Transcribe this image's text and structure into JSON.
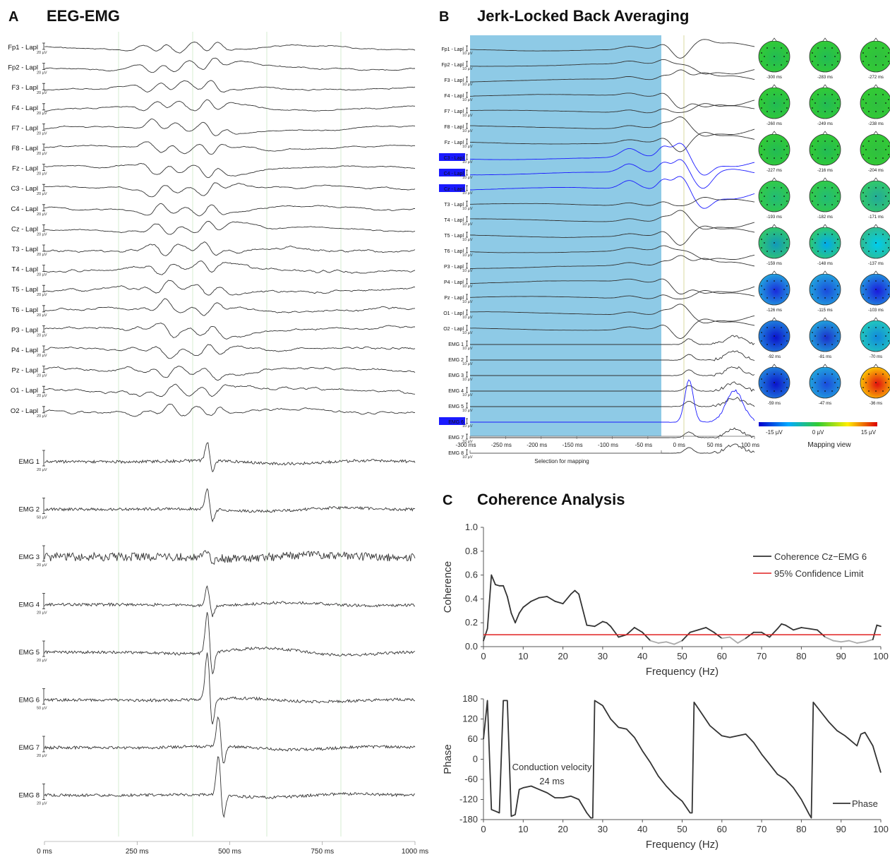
{
  "panel_a": {
    "letter": "A",
    "title": "EEG-EMG",
    "eeg_channels": [
      "Fp1 - Lapl",
      "Fp2 - Lapl",
      "F3 - Lapl",
      "F4 - Lapl",
      "F7 - Lapl",
      "F8 - Lapl",
      "Fz - Lapl",
      "C3 - Lapl",
      "C4 - Lapl",
      "Cz - Lapl",
      "T3 - Lapl",
      "T4 - Lapl",
      "T5 - Lapl",
      "T6 - Lapl",
      "P3 - Lapl",
      "P4 - Lapl",
      "Pz - Lapl",
      "O1 - Lapl",
      "O2 - Lapl"
    ],
    "eeg_scale": "20 µV",
    "emg_channels": [
      "EMG 1",
      "EMG 2",
      "EMG 3",
      "EMG 4",
      "EMG 5",
      "EMG 6",
      "EMG 7",
      "EMG 8"
    ],
    "emg_scales": [
      "20 µV",
      "50 µV",
      "20 µV",
      "20 µV",
      "20 µV",
      "50 µV",
      "20 µV",
      "20 µV"
    ],
    "x_ticks": [
      "0 ms",
      "250 ms",
      "500 ms",
      "750 ms",
      "1000 ms"
    ]
  },
  "panel_b": {
    "letter": "B",
    "title": "Jerk-Locked Back Averaging",
    "channels": [
      "Fp1 - Lapl",
      "Fp2 - Lapl",
      "F3 - Lapl",
      "F4 - Lapl",
      "F7 - Lapl",
      "F8 - Lapl",
      "Fz - Lapl",
      "C3 - Lapl",
      "C4 - Lapl",
      "Cz - Lapl",
      "T3 - Lapl",
      "T4 - Lapl",
      "T5 - Lapl",
      "T6 - Lapl",
      "P3 - Lapl",
      "P4 - Lapl",
      "Pz - Lapl",
      "O1 - Lapl",
      "O2 - Lapl",
      "EMG 1",
      "EMG 2",
      "EMG 3",
      "EMG 4",
      "EMG 5",
      "EMG 6",
      "EMG 7",
      "EMG 8"
    ],
    "highlighted_channels": [
      "C3 - Lapl",
      "C4 - Lapl",
      "Cz - Lapl",
      "EMG 6"
    ],
    "scale": "10 µV",
    "x_ticks": [
      "-300 ms",
      "-250 ms",
      "-200 ms",
      "-150 ms",
      "-100 ms",
      "-50 ms",
      "0 ms",
      "50 ms",
      "100 ms"
    ],
    "selection_label": "Selection for mapping",
    "map_times": [
      "-300 ms",
      "-283 ms",
      "-272 ms",
      "-260 ms",
      "-249 ms",
      "-238 ms",
      "-227 ms",
      "-216 ms",
      "-204 ms",
      "-193 ms",
      "-182 ms",
      "-171 ms",
      "-159 ms",
      "-148 ms",
      "-137 ms",
      "-126 ms",
      "-115 ms",
      "-103 ms",
      "-92 ms",
      "-81 ms",
      "-70 ms",
      "-59 ms",
      "-47 ms",
      "-36 ms"
    ],
    "colorbar_labels": [
      "-15 µV",
      "0 µV",
      "15 µV"
    ],
    "mapping_view_label": "Mapping view",
    "colors": {
      "selection": "#8ecae6",
      "highlight": "#1a1aff"
    }
  },
  "panel_c": {
    "letter": "C",
    "title": "Coherence Analysis",
    "colors": {
      "coherence": "#333333",
      "below_limit": "#aaaaaa",
      "limit": "#e02020",
      "phase": "#333333"
    }
  },
  "chart_data": [
    {
      "type": "line",
      "xlabel": "Frequency (Hz)",
      "ylabel": "Coherence",
      "xlim": [
        0,
        100
      ],
      "ylim": [
        0,
        1.0
      ],
      "x_ticks": [
        0,
        10,
        20,
        30,
        40,
        50,
        60,
        70,
        80,
        90,
        100
      ],
      "y_ticks": [
        "0.0",
        "0.2",
        "0.4",
        "0.6",
        "0.8",
        "1.0"
      ],
      "legend_position": "top-right",
      "series": [
        {
          "name": "Coherence Cz−EMG 6",
          "x": [
            0,
            1,
            2,
            3,
            4,
            5,
            6,
            7,
            8,
            9,
            10,
            12,
            14,
            16,
            18,
            20,
            22,
            23,
            24,
            26,
            28,
            30,
            31,
            32,
            34,
            36,
            38,
            40,
            42,
            44,
            46,
            48,
            50,
            52,
            54,
            56,
            58,
            60,
            62,
            64,
            66,
            68,
            70,
            72,
            74,
            75,
            76,
            78,
            80,
            82,
            84,
            86,
            88,
            90,
            92,
            94,
            96,
            98,
            99,
            100
          ],
          "y": [
            0.05,
            0.15,
            0.6,
            0.52,
            0.51,
            0.51,
            0.42,
            0.28,
            0.2,
            0.28,
            0.33,
            0.38,
            0.41,
            0.42,
            0.38,
            0.36,
            0.44,
            0.47,
            0.44,
            0.18,
            0.17,
            0.21,
            0.2,
            0.17,
            0.08,
            0.1,
            0.16,
            0.12,
            0.05,
            0.03,
            0.04,
            0.02,
            0.05,
            0.12,
            0.14,
            0.16,
            0.12,
            0.07,
            0.08,
            0.03,
            0.07,
            0.12,
            0.12,
            0.08,
            0.15,
            0.19,
            0.18,
            0.14,
            0.16,
            0.15,
            0.14,
            0.08,
            0.05,
            0.04,
            0.05,
            0.03,
            0.04,
            0.06,
            0.18,
            0.17
          ]
        },
        {
          "name": "95% Confidence Limit",
          "x": [
            0,
            100
          ],
          "y": [
            0.1,
            0.1
          ]
        }
      ]
    },
    {
      "type": "line",
      "xlabel": "Frequency (Hz)",
      "ylabel": "Phase",
      "xlim": [
        0,
        100
      ],
      "ylim": [
        -180,
        180
      ],
      "x_ticks": [
        0,
        10,
        20,
        30,
        40,
        50,
        60,
        70,
        80,
        90,
        100
      ],
      "y_ticks": [
        -180,
        -120,
        -60,
        0,
        60,
        120,
        180
      ],
      "legend_position": "bottom-right",
      "annotation": [
        "Conduction velocity",
        "24 ms"
      ],
      "series": [
        {
          "name": "Phase",
          "x": [
            0,
            1,
            2,
            3,
            4,
            5,
            5.5,
            6,
            7,
            8,
            9,
            10,
            12,
            14,
            16,
            18,
            20,
            22,
            24,
            26,
            27,
            27.5,
            28,
            30,
            32,
            34,
            36,
            38,
            40,
            42,
            44,
            46,
            48,
            50,
            52,
            52.5,
            53,
            55,
            57,
            60,
            62,
            64,
            66,
            68,
            70,
            72,
            74,
            76,
            78,
            80,
            82,
            82.5,
            83,
            85,
            87,
            89,
            91,
            92,
            94,
            95,
            96,
            98,
            100
          ],
          "y": [
            60,
            175,
            -150,
            -155,
            -160,
            175,
            175,
            175,
            -170,
            -165,
            -90,
            -85,
            -80,
            -90,
            -100,
            -115,
            -115,
            -110,
            -120,
            -160,
            -175,
            -175,
            175,
            160,
            120,
            95,
            90,
            65,
            25,
            -10,
            -50,
            -80,
            -105,
            -125,
            -160,
            -160,
            170,
            135,
            100,
            70,
            65,
            70,
            75,
            50,
            15,
            -15,
            -45,
            -60,
            -85,
            -120,
            -165,
            -175,
            170,
            140,
            110,
            85,
            70,
            60,
            40,
            75,
            80,
            40,
            -40
          ]
        }
      ]
    }
  ]
}
